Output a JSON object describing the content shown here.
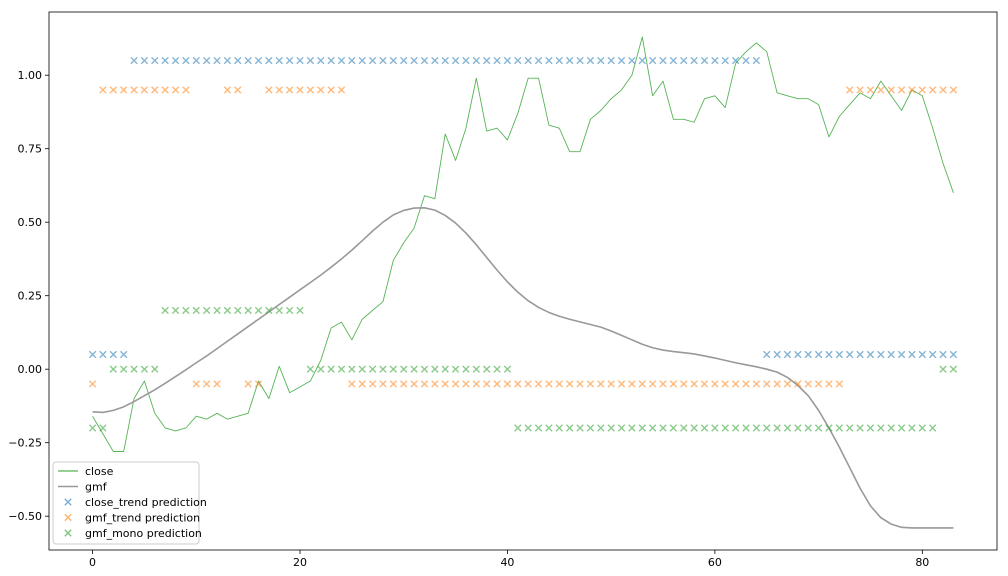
{
  "chart_data": {
    "type": "line",
    "title": "",
    "xlabel": "",
    "ylabel": "",
    "xlim": [
      -4.2,
      87.2
    ],
    "ylim": [
      -0.615,
      1.215
    ],
    "x_ticks": [
      0,
      20,
      40,
      60,
      80
    ],
    "y_ticks": [
      -0.5,
      -0.25,
      0.0,
      0.25,
      0.5,
      0.75,
      1.0
    ],
    "x_tick_labels": [
      "0",
      "20",
      "40",
      "60",
      "80"
    ],
    "y_tick_labels": [
      "−0.50",
      "−0.25",
      "0.00",
      "0.25",
      "0.50",
      "0.75",
      "1.00"
    ],
    "grid": false,
    "legend_position": "lower-left",
    "legend": [
      "close",
      "gmf",
      "close_trend prediction",
      "gmf_trend prediction",
      "gmf_mono prediction"
    ],
    "lines": [
      {
        "name": "close",
        "color": "#2ca02c",
        "x_start": 0,
        "values": [
          -0.16,
          -0.22,
          -0.28,
          -0.28,
          -0.1,
          -0.04,
          -0.15,
          -0.2,
          -0.21,
          -0.2,
          -0.16,
          -0.17,
          -0.15,
          -0.17,
          -0.16,
          -0.15,
          -0.04,
          -0.1,
          0.01,
          -0.08,
          -0.06,
          -0.04,
          0.03,
          0.14,
          0.16,
          0.1,
          0.17,
          0.2,
          0.23,
          0.37,
          0.43,
          0.48,
          0.59,
          0.58,
          0.8,
          0.71,
          0.82,
          0.99,
          0.81,
          0.82,
          0.78,
          0.87,
          0.99,
          0.99,
          0.83,
          0.82,
          0.74,
          0.74,
          0.85,
          0.88,
          0.92,
          0.95,
          1.0,
          1.13,
          0.93,
          0.98,
          0.85,
          0.85,
          0.84,
          0.92,
          0.93,
          0.89,
          1.04,
          1.08,
          1.11,
          1.08,
          0.94,
          0.93,
          0.92,
          0.92,
          0.9,
          0.79,
          0.86,
          0.9,
          0.94,
          0.92,
          0.98,
          0.93,
          0.88,
          0.95,
          0.93,
          0.82,
          0.7,
          0.6
        ]
      },
      {
        "name": "gmf",
        "color": "#999999",
        "x_start": 0,
        "values": [
          -0.145,
          -0.147,
          -0.14,
          -0.128,
          -0.11,
          -0.09,
          -0.07,
          -0.048,
          -0.025,
          -0.002,
          0.022,
          0.045,
          0.07,
          0.095,
          0.12,
          0.145,
          0.17,
          0.195,
          0.22,
          0.245,
          0.27,
          0.295,
          0.32,
          0.347,
          0.375,
          0.405,
          0.437,
          0.47,
          0.5,
          0.525,
          0.54,
          0.548,
          0.549,
          0.541,
          0.523,
          0.497,
          0.463,
          0.423,
          0.38,
          0.337,
          0.297,
          0.262,
          0.233,
          0.21,
          0.193,
          0.18,
          0.17,
          0.161,
          0.152,
          0.143,
          0.13,
          0.115,
          0.1,
          0.085,
          0.073,
          0.065,
          0.06,
          0.056,
          0.052,
          0.045,
          0.038,
          0.03,
          0.022,
          0.015,
          0.008,
          0.0,
          -0.01,
          -0.028,
          -0.055,
          -0.09,
          -0.14,
          -0.2,
          -0.265,
          -0.335,
          -0.405,
          -0.465,
          -0.505,
          -0.527,
          -0.538,
          -0.54,
          -0.54,
          -0.54,
          -0.54,
          -0.54
        ]
      }
    ],
    "scatter_series": [
      {
        "name": "close_trend prediction",
        "color": "#1f77b4",
        "marker": "x",
        "points": [
          [
            0,
            0.05
          ],
          [
            1,
            0.05
          ],
          [
            2,
            0.05
          ],
          [
            3,
            0.05
          ],
          [
            4,
            1.05
          ],
          [
            5,
            1.05
          ],
          [
            6,
            1.05
          ],
          [
            7,
            1.05
          ],
          [
            8,
            1.05
          ],
          [
            9,
            1.05
          ],
          [
            10,
            1.05
          ],
          [
            11,
            1.05
          ],
          [
            12,
            1.05
          ],
          [
            13,
            1.05
          ],
          [
            14,
            1.05
          ],
          [
            15,
            1.05
          ],
          [
            16,
            1.05
          ],
          [
            17,
            1.05
          ],
          [
            18,
            1.05
          ],
          [
            19,
            1.05
          ],
          [
            20,
            1.05
          ],
          [
            21,
            1.05
          ],
          [
            22,
            1.05
          ],
          [
            23,
            1.05
          ],
          [
            24,
            1.05
          ],
          [
            25,
            1.05
          ],
          [
            26,
            1.05
          ],
          [
            27,
            1.05
          ],
          [
            28,
            1.05
          ],
          [
            29,
            1.05
          ],
          [
            30,
            1.05
          ],
          [
            31,
            1.05
          ],
          [
            32,
            1.05
          ],
          [
            33,
            1.05
          ],
          [
            34,
            1.05
          ],
          [
            35,
            1.05
          ],
          [
            36,
            1.05
          ],
          [
            37,
            1.05
          ],
          [
            38,
            1.05
          ],
          [
            39,
            1.05
          ],
          [
            40,
            1.05
          ],
          [
            41,
            1.05
          ],
          [
            42,
            1.05
          ],
          [
            43,
            1.05
          ],
          [
            44,
            1.05
          ],
          [
            45,
            1.05
          ],
          [
            46,
            1.05
          ],
          [
            47,
            1.05
          ],
          [
            48,
            1.05
          ],
          [
            49,
            1.05
          ],
          [
            50,
            1.05
          ],
          [
            51,
            1.05
          ],
          [
            52,
            1.05
          ],
          [
            53,
            1.05
          ],
          [
            54,
            1.05
          ],
          [
            55,
            1.05
          ],
          [
            56,
            1.05
          ],
          [
            57,
            1.05
          ],
          [
            58,
            1.05
          ],
          [
            59,
            1.05
          ],
          [
            60,
            1.05
          ],
          [
            61,
            1.05
          ],
          [
            62,
            1.05
          ],
          [
            63,
            1.05
          ],
          [
            64,
            1.05
          ],
          [
            65,
            0.05
          ],
          [
            66,
            0.05
          ],
          [
            67,
            0.05
          ],
          [
            68,
            0.05
          ],
          [
            69,
            0.05
          ],
          [
            70,
            0.05
          ],
          [
            71,
            0.05
          ],
          [
            72,
            0.05
          ],
          [
            73,
            0.05
          ],
          [
            74,
            0.05
          ],
          [
            75,
            0.05
          ],
          [
            76,
            0.05
          ],
          [
            77,
            0.05
          ],
          [
            78,
            0.05
          ],
          [
            79,
            0.05
          ],
          [
            80,
            0.05
          ],
          [
            81,
            0.05
          ],
          [
            82,
            0.05
          ],
          [
            83,
            0.05
          ]
        ]
      },
      {
        "name": "gmf_trend prediction",
        "color": "#ff7f0e",
        "marker": "x",
        "points": [
          [
            0,
            -0.05
          ],
          [
            1,
            0.95
          ],
          [
            2,
            0.95
          ],
          [
            3,
            0.95
          ],
          [
            4,
            0.95
          ],
          [
            5,
            0.95
          ],
          [
            6,
            0.95
          ],
          [
            7,
            0.95
          ],
          [
            8,
            0.95
          ],
          [
            9,
            0.95
          ],
          [
            10,
            -0.05
          ],
          [
            11,
            -0.05
          ],
          [
            12,
            -0.05
          ],
          [
            13,
            0.95
          ],
          [
            14,
            0.95
          ],
          [
            15,
            -0.05
          ],
          [
            16,
            -0.05
          ],
          [
            17,
            0.95
          ],
          [
            18,
            0.95
          ],
          [
            19,
            0.95
          ],
          [
            20,
            0.95
          ],
          [
            21,
            0.95
          ],
          [
            22,
            0.95
          ],
          [
            23,
            0.95
          ],
          [
            24,
            0.95
          ],
          [
            25,
            -0.05
          ],
          [
            26,
            -0.05
          ],
          [
            27,
            -0.05
          ],
          [
            28,
            -0.05
          ],
          [
            29,
            -0.05
          ],
          [
            30,
            -0.05
          ],
          [
            31,
            -0.05
          ],
          [
            32,
            -0.05
          ],
          [
            33,
            -0.05
          ],
          [
            34,
            -0.05
          ],
          [
            35,
            -0.05
          ],
          [
            36,
            -0.05
          ],
          [
            37,
            -0.05
          ],
          [
            38,
            -0.05
          ],
          [
            39,
            -0.05
          ],
          [
            40,
            -0.05
          ],
          [
            41,
            -0.05
          ],
          [
            42,
            -0.05
          ],
          [
            43,
            -0.05
          ],
          [
            44,
            -0.05
          ],
          [
            45,
            -0.05
          ],
          [
            46,
            -0.05
          ],
          [
            47,
            -0.05
          ],
          [
            48,
            -0.05
          ],
          [
            49,
            -0.05
          ],
          [
            50,
            -0.05
          ],
          [
            51,
            -0.05
          ],
          [
            52,
            -0.05
          ],
          [
            53,
            -0.05
          ],
          [
            54,
            -0.05
          ],
          [
            55,
            -0.05
          ],
          [
            56,
            -0.05
          ],
          [
            57,
            -0.05
          ],
          [
            58,
            -0.05
          ],
          [
            59,
            -0.05
          ],
          [
            60,
            -0.05
          ],
          [
            61,
            -0.05
          ],
          [
            62,
            -0.05
          ],
          [
            63,
            -0.05
          ],
          [
            64,
            -0.05
          ],
          [
            65,
            -0.05
          ],
          [
            66,
            -0.05
          ],
          [
            67,
            -0.05
          ],
          [
            68,
            -0.05
          ],
          [
            69,
            -0.05
          ],
          [
            70,
            -0.05
          ],
          [
            71,
            -0.05
          ],
          [
            72,
            -0.05
          ],
          [
            73,
            0.95
          ],
          [
            74,
            0.95
          ],
          [
            75,
            0.95
          ],
          [
            76,
            0.95
          ],
          [
            77,
            0.95
          ],
          [
            78,
            0.95
          ],
          [
            79,
            0.95
          ],
          [
            80,
            0.95
          ],
          [
            81,
            0.95
          ],
          [
            82,
            0.95
          ],
          [
            83,
            0.95
          ]
        ]
      },
      {
        "name": "gmf_mono prediction",
        "color": "#2ca02c",
        "marker": "x",
        "points": [
          [
            0,
            -0.2
          ],
          [
            1,
            -0.2
          ],
          [
            2,
            0.0
          ],
          [
            3,
            0.0
          ],
          [
            4,
            0.0
          ],
          [
            5,
            0.0
          ],
          [
            6,
            0.0
          ],
          [
            7,
            0.2
          ],
          [
            8,
            0.2
          ],
          [
            9,
            0.2
          ],
          [
            10,
            0.2
          ],
          [
            11,
            0.2
          ],
          [
            12,
            0.2
          ],
          [
            13,
            0.2
          ],
          [
            14,
            0.2
          ],
          [
            15,
            0.2
          ],
          [
            16,
            0.2
          ],
          [
            17,
            0.2
          ],
          [
            18,
            0.2
          ],
          [
            19,
            0.2
          ],
          [
            20,
            0.2
          ],
          [
            21,
            0.0
          ],
          [
            22,
            0.0
          ],
          [
            23,
            0.0
          ],
          [
            24,
            0.0
          ],
          [
            25,
            0.0
          ],
          [
            26,
            0.0
          ],
          [
            27,
            0.0
          ],
          [
            28,
            0.0
          ],
          [
            29,
            0.0
          ],
          [
            30,
            0.0
          ],
          [
            31,
            0.0
          ],
          [
            32,
            0.0
          ],
          [
            33,
            0.0
          ],
          [
            34,
            0.0
          ],
          [
            35,
            0.0
          ],
          [
            36,
            0.0
          ],
          [
            37,
            0.0
          ],
          [
            38,
            0.0
          ],
          [
            39,
            0.0
          ],
          [
            40,
            0.0
          ],
          [
            41,
            -0.2
          ],
          [
            42,
            -0.2
          ],
          [
            43,
            -0.2
          ],
          [
            44,
            -0.2
          ],
          [
            45,
            -0.2
          ],
          [
            46,
            -0.2
          ],
          [
            47,
            -0.2
          ],
          [
            48,
            -0.2
          ],
          [
            49,
            -0.2
          ],
          [
            50,
            -0.2
          ],
          [
            51,
            -0.2
          ],
          [
            52,
            -0.2
          ],
          [
            53,
            -0.2
          ],
          [
            54,
            -0.2
          ],
          [
            55,
            -0.2
          ],
          [
            56,
            -0.2
          ],
          [
            57,
            -0.2
          ],
          [
            58,
            -0.2
          ],
          [
            59,
            -0.2
          ],
          [
            60,
            -0.2
          ],
          [
            61,
            -0.2
          ],
          [
            62,
            -0.2
          ],
          [
            63,
            -0.2
          ],
          [
            64,
            -0.2
          ],
          [
            65,
            -0.2
          ],
          [
            66,
            -0.2
          ],
          [
            67,
            -0.2
          ],
          [
            68,
            -0.2
          ],
          [
            69,
            -0.2
          ],
          [
            70,
            -0.2
          ],
          [
            71,
            -0.2
          ],
          [
            72,
            -0.2
          ],
          [
            73,
            -0.2
          ],
          [
            74,
            -0.2
          ],
          [
            75,
            -0.2
          ],
          [
            76,
            -0.2
          ],
          [
            77,
            -0.2
          ],
          [
            78,
            -0.2
          ],
          [
            79,
            -0.2
          ],
          [
            80,
            -0.2
          ],
          [
            81,
            -0.2
          ],
          [
            82,
            0.0
          ],
          [
            83,
            0.0
          ]
        ]
      }
    ]
  }
}
